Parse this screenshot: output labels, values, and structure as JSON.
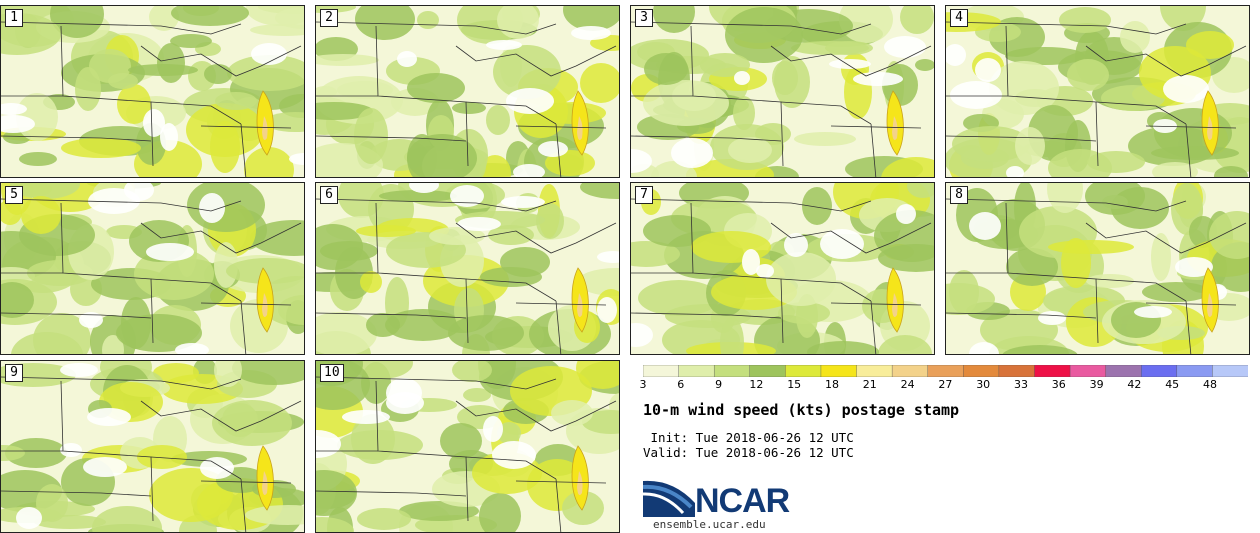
{
  "panels": [
    {
      "label": "1"
    },
    {
      "label": "2"
    },
    {
      "label": "3"
    },
    {
      "label": "4"
    },
    {
      "label": "5"
    },
    {
      "label": "6"
    },
    {
      "label": "7"
    },
    {
      "label": "8"
    },
    {
      "label": "9"
    },
    {
      "label": "10"
    }
  ],
  "colorbar": {
    "ticks": [
      "3",
      "6",
      "9",
      "12",
      "15",
      "18",
      "21",
      "24",
      "27",
      "30",
      "33",
      "36",
      "39",
      "42",
      "45",
      "48"
    ],
    "colors": [
      "#f4f6d9",
      "#dfeeab",
      "#c4df7e",
      "#9ec45d",
      "#dde93a",
      "#f5e51a",
      "#f8ed9a",
      "#f3d28a",
      "#e9a05a",
      "#e38a3c",
      "#d8733a",
      "#ee1147",
      "#e95aa0",
      "#9c73ae",
      "#6b6ef0",
      "#8a9af2",
      "#b7c8f8"
    ]
  },
  "title": "10-m wind speed (kts) postage stamp",
  "init_line": " Init: Tue 2018-06-26 12 UTC",
  "valid_line": "Valid: Tue 2018-06-26 12 UTC",
  "logo": {
    "name": "NCAR",
    "url": "ensemble.ucar.edu"
  },
  "colors": {
    "land_light": "#f4f7d8",
    "border": "#222222",
    "brand": "#123a75"
  }
}
